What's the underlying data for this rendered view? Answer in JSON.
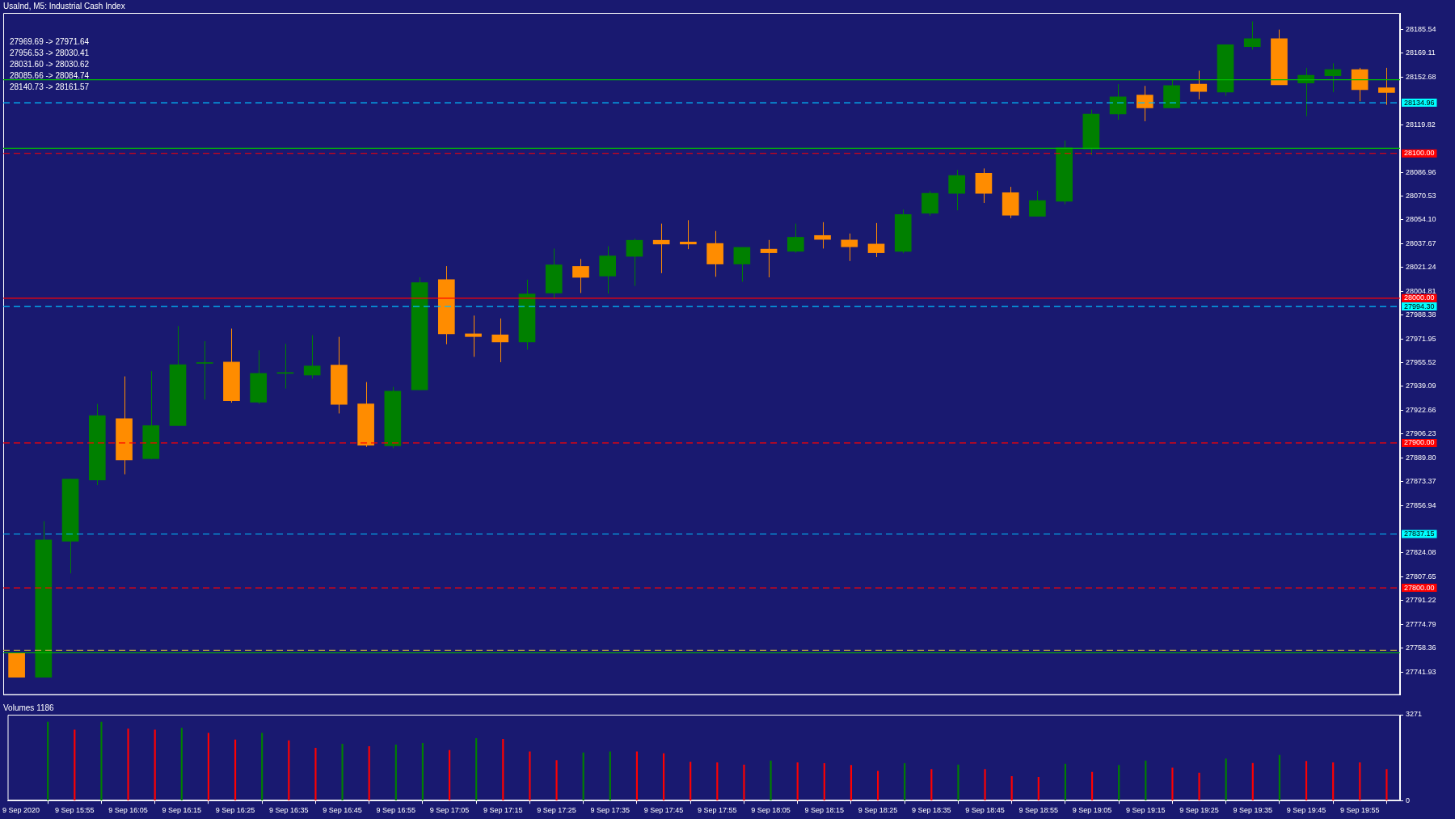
{
  "chart_data": [
    {
      "type": "candlestick",
      "title": "UsaInd, M5: Industrial Cash Index",
      "categories": [
        null,
        null,
        null,
        null,
        null,
        null,
        null,
        null,
        null,
        null,
        null,
        null,
        null,
        null,
        null,
        null,
        null,
        null,
        null,
        null,
        null,
        null,
        null,
        null,
        null,
        null,
        null,
        null,
        null,
        null,
        null,
        null,
        null,
        null,
        null,
        null,
        null,
        null,
        null,
        null,
        null,
        null,
        null,
        null,
        null,
        null,
        null,
        null,
        null,
        null,
        null,
        null
      ],
      "ohlc": [
        [
          27755.1,
          27755.1,
          27738.3,
          27738.3
        ],
        [
          27738.3,
          27846.0,
          27738.3,
          27833.1
        ],
        [
          27832.2,
          27875.1,
          27810.0,
          27875.1
        ],
        [
          27874.5,
          27927.0,
          27870.9,
          27918.9
        ],
        [
          27916.8,
          27946.0,
          27878.4,
          27888.3
        ],
        [
          27889.2,
          27949.6,
          27889.0,
          27912.0
        ],
        [
          27912.0,
          27980.8,
          27912.0,
          27954.1
        ],
        [
          27955.0,
          27970.3,
          27930.0,
          27955.0
        ],
        [
          27955.9,
          27979.0,
          27927.9,
          27929.2
        ],
        [
          27928.2,
          27964.0,
          27927.0,
          27948.1
        ],
        [
          27948.1,
          27968.5,
          27937.6,
          27948.1
        ],
        [
          27946.9,
          27974.5,
          27944.5,
          27953.2
        ],
        [
          27953.8,
          27973.3,
          27920.4,
          27926.7
        ],
        [
          27927.0,
          27942.1,
          27897.3,
          27898.5
        ],
        [
          27898.0,
          27938.8,
          27896.4,
          27935.8
        ],
        [
          27936.7,
          28014.4,
          27936.7,
          28010.8
        ],
        [
          28012.9,
          28022.2,
          27968.2,
          27975.4
        ],
        [
          27975.4,
          27988.0,
          27959.5,
          27973.5
        ],
        [
          27974.7,
          27986.0,
          27955.8,
          27969.8
        ],
        [
          27969.8,
          28012.8,
          27964.5,
          28003.0
        ],
        [
          28003.6,
          28034.3,
          27999.7,
          28023.0
        ],
        [
          28022.0,
          28027.1,
          28003.6,
          28014.4
        ],
        [
          28015.3,
          28035.9,
          28003.2,
          28029.2
        ],
        [
          28028.9,
          28041.1,
          28008.5,
          28040.0
        ],
        [
          28040.0,
          28051.5,
          28017.3,
          28037.4
        ],
        [
          28038.8,
          28053.9,
          28033.9,
          28037.4
        ],
        [
          28037.8,
          28046.4,
          28014.8,
          28023.6
        ],
        [
          28023.6,
          28035.1,
          28011.4,
          28035.1
        ],
        [
          28033.9,
          28040.2,
          28014.4,
          28031.4
        ],
        [
          28032.4,
          28051.5,
          28031.4,
          28042.1
        ],
        [
          28043.3,
          28052.5,
          28034.3,
          28040.6
        ],
        [
          28040.2,
          28044.7,
          28025.7,
          28035.5
        ],
        [
          28037.4,
          28051.9,
          28028.4,
          28031.4
        ],
        [
          28032.4,
          28061.3,
          28031.0,
          28057.8
        ],
        [
          28058.7,
          28074.0,
          28057.0,
          28072.4
        ],
        [
          28072.4,
          28088.6,
          28060.7,
          28084.7
        ],
        [
          28086.3,
          28089.6,
          28065.8,
          28072.4
        ],
        [
          28072.9,
          28076.9,
          28055.3,
          28057.3
        ],
        [
          28056.6,
          28074.2,
          28056.6,
          28067.4
        ],
        [
          28066.9,
          28108.9,
          28064.9,
          28103.8
        ],
        [
          28103.1,
          28130.2,
          28098.8,
          28127.2
        ],
        [
          28127.2,
          28147.8,
          28123.2,
          28139.0
        ],
        [
          28140.3,
          28146.6,
          28122.2,
          28131.5
        ],
        [
          28131.5,
          28150.8,
          28131.5,
          28146.8
        ],
        [
          28147.8,
          28157.1,
          28137.3,
          28142.8
        ],
        [
          28142.3,
          28175.0,
          28139.8,
          28175.0
        ],
        [
          28173.7,
          28191.1,
          28171.7,
          28179.2
        ],
        [
          28179.2,
          28185.5,
          28147.3,
          28147.3
        ],
        [
          28148.6,
          28159.1,
          28125.7,
          28153.9
        ],
        [
          28153.6,
          28162.2,
          28142.3,
          28157.9
        ],
        [
          28157.9,
          28159.1,
          28136.0,
          28144.0
        ],
        [
          28145.3,
          28159.1,
          28133.5,
          28142.0
        ]
      ],
      "colors": [
        "#ff8c00",
        "#008000",
        "#008000",
        "#008000",
        "#ff8c00",
        "#008000",
        "#008000",
        "#008000",
        "#ff8c00",
        "#008000",
        "#008000",
        "#008000",
        "#ff8c00",
        "#ff8c00",
        "#008000",
        "#008000",
        "#ff8c00",
        "#ff8c00",
        "#ff8c00",
        "#008000",
        "#008000",
        "#ff8c00",
        "#008000",
        "#008000",
        "#ff8c00",
        "#ff8c00",
        "#ff8c00",
        "#008000",
        "#ff8c00",
        "#008000",
        "#ff8c00",
        "#ff8c00",
        "#ff8c00",
        "#008000",
        "#008000",
        "#008000",
        "#ff8c00",
        "#ff8c00",
        "#008000",
        "#008000",
        "#008000",
        "#008000",
        "#ff8c00",
        "#008000",
        "#ff8c00",
        "#008000",
        "#008000",
        "#ff8c00",
        "#008000",
        "#008000",
        "#ff8c00",
        "#ff8c00"
      ],
      "ylim": [
        27726,
        28197
      ],
      "yticks": [
        28185.54,
        28169.11,
        28152.68,
        28119.82,
        28086.96,
        28070.53,
        {
          "value": 28054.1,
          "label": "28054.10"
        },
        28037.67,
        28021.24,
        28004.81,
        27988.38,
        27971.95,
        27955.52,
        27939.09,
        27922.66,
        27906.23,
        {
          "value": 27889.8,
          "label": "27889.80"
        },
        27873.37,
        27856.94,
        27824.08,
        27807.65,
        27791.22,
        27774.79,
        27758.36,
        27741.93
      ],
      "tick_labels": "y",
      "ref_lines": [
        {
          "axis": "y",
          "value": 28150.9,
          "color": "#00c000",
          "line_style": "solid"
        },
        {
          "axis": "y",
          "value": 28134.96,
          "label": "28134.96",
          "color": "#00bfff",
          "line_style": "dashed"
        },
        {
          "axis": "y",
          "value": 28103.6,
          "color": "#00c000",
          "line_style": "solid"
        },
        {
          "axis": "y",
          "value": 28100,
          "label": "28100.00",
          "color": "#ff0000",
          "line_style": "dashed"
        },
        {
          "axis": "y",
          "value": 28000,
          "label": "28000.00",
          "color": "#ff0000",
          "line_style": "solid"
        },
        {
          "axis": "y",
          "value": 27994.3,
          "label": "27994.30",
          "color": "#00bfff",
          "line_style": "dashed"
        },
        {
          "axis": "y",
          "value": 27900,
          "label": "27900.00",
          "color": "#ff0000",
          "line_style": "dashed"
        },
        {
          "axis": "y",
          "value": 27837.15,
          "label": "27837.15",
          "color": "#00bfff",
          "line_style": "dashed"
        },
        {
          "axis": "y",
          "value": 27800,
          "label": "27800.00",
          "color": "#ff0000",
          "line_style": "dashed"
        },
        {
          "axis": "y",
          "value": 27756.8,
          "color": "#b8a040",
          "line_style": "dashed"
        },
        {
          "axis": "y",
          "value": 27755.1,
          "color": "#00c000",
          "line_style": "solid"
        }
      ],
      "annotations": [
        "27969.69 -> 27971.64",
        "27956.53 -> 28030.41",
        "28031.60 -> 28030.62",
        "28085.66 -> 28084.74",
        "28140.73 -> 28161.57"
      ],
      "grid": false,
      "legend": false
    },
    {
      "type": "bar",
      "title": "Volumes 1186",
      "categories": [
        "9 Sep 2020",
        null,
        "9 Sep 15:55",
        null,
        "9 Sep 16:05",
        null,
        "9 Sep 16:15",
        null,
        "9 Sep 16:25",
        null,
        "9 Sep 16:35",
        null,
        "9 Sep 16:45",
        null,
        "9 Sep 16:55",
        null,
        "9 Sep 17:05",
        null,
        "9 Sep 17:15",
        null,
        "9 Sep 17:25",
        null,
        "9 Sep 17:35",
        null,
        "9 Sep 17:45",
        null,
        "9 Sep 17:55",
        null,
        "9 Sep 18:05",
        null,
        "9 Sep 18:15",
        null,
        "9 Sep 18:25",
        null,
        "9 Sep 18:35",
        null,
        "9 Sep 18:45",
        null,
        "9 Sep 18:55",
        null,
        "9 Sep 19:05",
        null,
        "9 Sep 19:15",
        null,
        "9 Sep 19:25",
        null,
        "9 Sep 19:35",
        null,
        "9 Sep 19:45",
        null,
        "9 Sep 19:55",
        null
      ],
      "values": [
        null,
        2990,
        2690,
        2990,
        2730,
        2690,
        2760,
        2570,
        2310,
        2570,
        2280,
        2000,
        2150,
        2060,
        2120,
        2180,
        1910,
        2370,
        2340,
        1860,
        1530,
        1820,
        1860,
        1860,
        1790,
        1470,
        1440,
        1360,
        1510,
        1440,
        1410,
        1340,
        1120,
        1410,
        1190,
        1360,
        1190,
        920,
        890,
        1390,
        1080,
        1340,
        1510,
        1240,
        1050,
        1590,
        1420,
        1730,
        1500,
        1440,
        1440,
        1186
      ],
      "colors": [
        "#ff0000",
        "#008000",
        "#ff0000",
        "#008000",
        "#ff0000",
        "#ff0000",
        "#008000",
        "#ff0000",
        "#ff0000",
        "#008000",
        "#ff0000",
        "#ff0000",
        "#008000",
        "#ff0000",
        "#008000",
        "#008000",
        "#ff0000",
        "#008000",
        "#ff0000",
        "#ff0000",
        "#ff0000",
        "#008000",
        "#008000",
        "#ff0000",
        "#ff0000",
        "#ff0000",
        "#ff0000",
        "#ff0000",
        "#008000",
        "#ff0000",
        "#ff0000",
        "#ff0000",
        "#ff0000",
        "#008000",
        "#ff0000",
        "#008000",
        "#ff0000",
        "#ff0000",
        "#ff0000",
        "#008000",
        "#ff0000",
        "#008000",
        "#008000",
        "#ff0000",
        "#ff0000",
        "#008000",
        "#ff0000",
        "#008000",
        "#ff0000",
        "#ff0000",
        "#ff0000",
        "#ff0000"
      ],
      "ylim": [
        0,
        3271
      ],
      "yticks": [
        0,
        3271
      ],
      "grid": false,
      "legend": false
    }
  ]
}
